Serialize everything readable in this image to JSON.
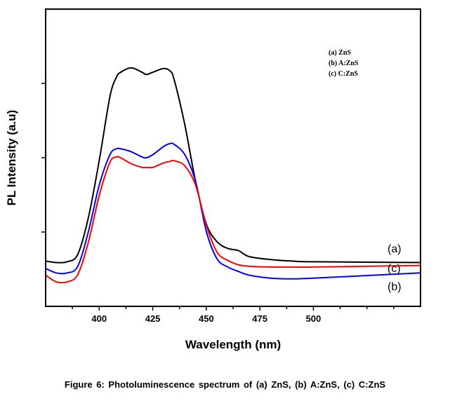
{
  "chart_data": {
    "type": "line",
    "xlabel": "Wavelength (nm)",
    "ylabel": "PL Intensity (a.u)",
    "xlim": [
      375,
      550
    ],
    "ylim": [
      0,
      4
    ],
    "xticks": [
      400,
      425,
      450,
      475,
      500
    ],
    "yticks_unlabeled": [
      1,
      2,
      3
    ],
    "grid": false,
    "legend": {
      "position": "top-right",
      "entries": [
        "(a) ZnS",
        "(b) A:ZnS",
        "(c) C:ZnS"
      ]
    },
    "x": [
      375,
      380,
      385,
      390,
      395,
      400,
      405,
      408,
      410,
      415,
      420,
      422,
      425,
      430,
      433,
      435,
      440,
      445,
      450,
      455,
      460,
      465,
      470,
      480,
      490,
      500,
      550
    ],
    "series": [
      {
        "name": "(a)",
        "color": "#000000",
        "values": [
          0.61,
          0.59,
          0.6,
          0.7,
          1.2,
          1.96,
          2.82,
          3.08,
          3.15,
          3.21,
          3.15,
          3.12,
          3.15,
          3.2,
          3.17,
          3.05,
          2.44,
          1.68,
          1.11,
          0.87,
          0.78,
          0.75,
          0.67,
          0.63,
          0.61,
          0.6,
          0.59
        ]
      },
      {
        "name": "(b)",
        "color": "#0000ff",
        "values": [
          0.51,
          0.45,
          0.45,
          0.54,
          1.01,
          1.63,
          2.04,
          2.12,
          2.12,
          2.08,
          2.01,
          2.0,
          2.04,
          2.15,
          2.19,
          2.18,
          2.04,
          1.68,
          1.01,
          0.64,
          0.53,
          0.47,
          0.42,
          0.38,
          0.37,
          0.38,
          0.45
        ]
      },
      {
        "name": "(c)",
        "color": "#ff0000",
        "values": [
          0.42,
          0.33,
          0.33,
          0.43,
          0.87,
          1.49,
          1.94,
          2.01,
          2.0,
          1.92,
          1.87,
          1.87,
          1.87,
          1.93,
          1.95,
          1.96,
          1.89,
          1.63,
          1.09,
          0.73,
          0.62,
          0.56,
          0.54,
          0.53,
          0.53,
          0.53,
          0.55
        ]
      }
    ],
    "curve_labels": [
      "(a)",
      "(c)",
      "(b)"
    ]
  },
  "caption": "Figure 6: Photoluminescence spectrum of (a) ZnS, (b) A:ZnS, (c) C:ZnS"
}
